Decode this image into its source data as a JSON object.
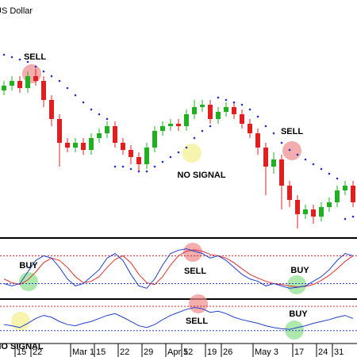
{
  "chart_data": {
    "type": "candlestick",
    "title": "US Dollar",
    "categories": [
      null,
      null,
      "15",
      null,
      "22",
      null,
      null,
      null,
      null,
      "Mar 1",
      null,
      null,
      "15",
      null,
      null,
      "22",
      null,
      null,
      "29",
      null,
      null,
      "Apr 5",
      null,
      "12",
      null,
      null,
      "19",
      null,
      "26",
      null,
      null,
      null,
      "May 3",
      null,
      null,
      null,
      null,
      "17",
      null,
      null,
      "24",
      null,
      "31",
      null,
      null
    ],
    "open": [
      62,
      64,
      66,
      63,
      68,
      66,
      58,
      50,
      40,
      38,
      40,
      37,
      42,
      44,
      47,
      40,
      37,
      34,
      31,
      38,
      45,
      47,
      48,
      47,
      52,
      55,
      56,
      50,
      53,
      55,
      52,
      48,
      44,
      38,
      30,
      33,
      22,
      16,
      10,
      12,
      9,
      13,
      15,
      20,
      22
    ],
    "high": [
      66,
      68,
      68,
      70,
      71,
      68,
      60,
      52,
      42,
      42,
      42,
      44,
      46,
      49,
      49,
      42,
      39,
      36,
      40,
      47,
      49,
      50,
      50,
      54,
      58,
      58,
      58,
      55,
      57,
      57,
      54,
      50,
      46,
      40,
      36,
      35,
      24,
      18,
      14,
      14,
      15,
      17,
      22,
      24,
      24
    ],
    "low": [
      60,
      62,
      61,
      61,
      64,
      55,
      47,
      30,
      36,
      36,
      35,
      35,
      40,
      42,
      38,
      35,
      31,
      28,
      29,
      36,
      43,
      45,
      45,
      45,
      50,
      53,
      48,
      48,
      51,
      50,
      46,
      42,
      35,
      18,
      27,
      12,
      13,
      4,
      8,
      6,
      7,
      11,
      13,
      18,
      13
    ],
    "close": [
      64,
      66,
      63,
      68,
      66,
      58,
      50,
      40,
      38,
      40,
      37,
      42,
      44,
      47,
      40,
      37,
      34,
      31,
      38,
      45,
      47,
      48,
      47,
      52,
      55,
      56,
      50,
      53,
      55,
      52,
      48,
      44,
      38,
      30,
      33,
      22,
      16,
      10,
      12,
      9,
      13,
      15,
      20,
      22,
      15
    ],
    "sar": [
      77,
      76,
      75,
      74,
      72,
      70,
      68,
      66,
      63,
      60,
      57,
      54,
      52,
      50,
      30,
      30,
      29,
      28,
      28,
      30,
      32,
      34,
      36,
      38,
      42,
      45,
      47,
      59,
      58,
      57,
      56,
      54,
      51,
      47,
      44,
      40,
      37,
      35,
      33,
      31,
      29,
      27,
      25,
      8,
      9
    ],
    "up_color": "#22b022",
    "down_color": "#e02020",
    "sar_color": "#2030c0",
    "ylim": [
      0,
      100
    ],
    "stochastic": {
      "ylim": [
        -10,
        115
      ],
      "levels": [
        20,
        80
      ],
      "series": [
        {
          "color": "#e03030",
          "values": [
            30,
            22,
            18,
            28,
            45,
            65,
            75,
            70,
            55,
            35,
            22,
            25,
            35,
            55,
            72,
            80,
            65,
            40,
            22,
            18,
            35,
            60,
            80,
            90,
            93,
            90,
            83,
            80,
            75,
            65,
            52,
            40,
            32,
            25,
            20,
            18,
            15,
            13,
            14,
            18,
            27,
            38,
            52,
            68,
            80
          ]
        },
        {
          "color": "#2040d0",
          "values": [
            20,
            15,
            20,
            45,
            70,
            80,
            75,
            55,
            30,
            15,
            20,
            35,
            50,
            75,
            85,
            70,
            40,
            15,
            10,
            30,
            60,
            85,
            92,
            95,
            90,
            85,
            75,
            80,
            70,
            55,
            40,
            30,
            25,
            15,
            20,
            15,
            10,
            12,
            15,
            25,
            35,
            50,
            70,
            85,
            80
          ]
        }
      ]
    },
    "rsi": {
      "ylim": [
        10,
        78
      ],
      "levels": [
        30,
        70
      ],
      "color": "#2040d0",
      "values": [
        40,
        38,
        35,
        42,
        50,
        55,
        52,
        45,
        40,
        38,
        42,
        45,
        50,
        55,
        58,
        52,
        45,
        38,
        35,
        40,
        48,
        55,
        60,
        65,
        68,
        66,
        60,
        62,
        58,
        52,
        48,
        45,
        42,
        38,
        35,
        33,
        32,
        35,
        38,
        42,
        45,
        48,
        52,
        55,
        50
      ]
    },
    "annotations": [
      "SELL",
      "SELL",
      "NO SIGNAL",
      "BUY",
      "SELL",
      "BUY",
      "SELL",
      "BUY",
      "NO SIGNAL"
    ]
  }
}
